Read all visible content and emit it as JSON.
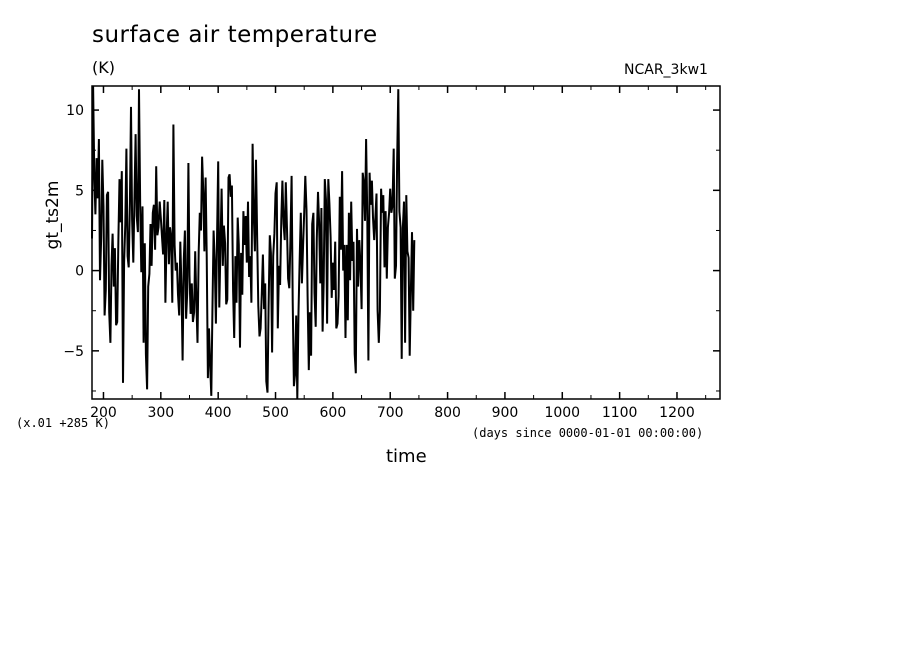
{
  "chart_data": {
    "type": "line",
    "title": "surface air temperature",
    "units": "(K)",
    "experiment": "NCAR_3kw1",
    "ylabel": "gt_ts2m",
    "xlabel": "time",
    "x_units": "(days since 0000-01-01 00:00:00)",
    "scale_note": "(x.01 +285 K)",
    "xlim": [
      180,
      1275
    ],
    "ylim": [
      -8,
      11.5
    ],
    "x_ticks": [
      200,
      300,
      400,
      500,
      600,
      700,
      800,
      900,
      1000,
      1100,
      1200
    ],
    "y_ticks": [
      -5,
      0,
      5,
      10
    ],
    "grid": false,
    "x_start": 180,
    "x_step": 2,
    "series": [
      {
        "color": "#000000",
        "values": [
          2.0,
          11.5,
          6.0,
          3.5,
          7.0,
          4.5,
          8.2,
          -0.6,
          2.1,
          6.9,
          4.0,
          -2.8,
          -1.2,
          4.7,
          4.9,
          -2.6,
          -4.5,
          0.3,
          2.3,
          -1.0,
          1.4,
          -3.4,
          -3.2,
          2.0,
          5.7,
          3.0,
          6.2,
          -7.0,
          0.5,
          2.9,
          7.6,
          0.9,
          0.2,
          4.2,
          10.2,
          3.2,
          0.5,
          4.3,
          8.5,
          3.4,
          2.4,
          11.3,
          4.0,
          -0.1,
          4.0,
          -4.5,
          1.7,
          -5.2,
          -7.4,
          -1.0,
          -0.2,
          2.9,
          0.3,
          3.6,
          4.1,
          1.3,
          6.5,
          2.2,
          2.7,
          4.3,
          3.3,
          2.1,
          1.0,
          4.4,
          -2.0,
          2.2,
          4.3,
          0.4,
          2.7,
          2.1,
          -2.0,
          9.1,
          1.6,
          0.0,
          0.5,
          -1.5,
          -2.8,
          1.8,
          -1.1,
          -5.6,
          0.7,
          2.5,
          -3.0,
          -1.4,
          6.7,
          -0.3,
          -2.7,
          -0.8,
          -3.2,
          -2.6,
          1.2,
          -2.0,
          -4.5,
          1.2,
          3.6,
          2.5,
          7.1,
          4.9,
          1.2,
          5.8,
          1.0,
          -6.7,
          -3.6,
          -5.8,
          -7.8,
          -2.6,
          2.5,
          0.7,
          -3.3,
          1.9,
          6.8,
          -2.3,
          1.6,
          5.1,
          0.3,
          2.8,
          1.7,
          -2.1,
          -1.8,
          5.8,
          6.0,
          4.6,
          5.3,
          -1.3,
          -4.2,
          0.9,
          -2.0,
          3.3,
          1.6,
          -4.8,
          1.1,
          -1.5,
          3.7,
          1.6,
          3.4,
          0.5,
          4.3,
          -0.4,
          0.9,
          -2.0,
          7.9,
          3.6,
          1.2,
          6.9,
          1.9,
          -2.2,
          -4.1,
          -3.6,
          -1.4,
          1.0,
          -2.4,
          -0.8,
          -6.9,
          -7.6,
          -2.2,
          2.2,
          1.1,
          -5.1,
          0.9,
          2.3,
          4.8,
          5.5,
          -3.6,
          0.3,
          -0.9,
          3.2,
          5.6,
          2.9,
          1.9,
          5.5,
          2.6,
          -0.5,
          -1.1,
          1.8,
          5.9,
          -1.9,
          -7.2,
          -6.5,
          -2.8,
          -8.0,
          -2.6,
          0.5,
          3.6,
          -0.8,
          1.6,
          3.6,
          5.9,
          3.8,
          -1.6,
          -6.2,
          -2.6,
          -5.3,
          2.9,
          3.6,
          -1.4,
          -3.5,
          2.0,
          4.9,
          3.0,
          -0.8,
          3.9,
          -3.8,
          -0.7,
          5.7,
          4.4,
          -3.3,
          5.7,
          4.2,
          2.1,
          -1.7,
          0.5,
          -1.2,
          1.8,
          -3.6,
          -3.3,
          -1.6,
          4.6,
          1.3,
          6.2,
          0.0,
          1.6,
          -4.2,
          1.6,
          -3.1,
          3.6,
          -0.6,
          4.3,
          0.6,
          1.8,
          -5.2,
          -6.4,
          2.6,
          -1.0,
          1.9,
          0.4,
          -2.4,
          6.1,
          5.5,
          3.1,
          8.2,
          3.3,
          -5.6,
          6.1,
          4.1,
          5.6,
          3.3,
          1.9,
          3.2,
          4.8,
          -2.5,
          -4.5,
          -2.5,
          5.1,
          3.6,
          4.7,
          0.2,
          3.7,
          -0.5,
          2.7,
          3.6,
          5.1,
          3.6,
          4.1,
          7.6,
          -0.5,
          0.3,
          6.7,
          11.3,
          3.7,
          2.7,
          -5.5,
          2.6,
          4.3,
          -4.5,
          4.7,
          1.2,
          0.8,
          -5.3,
          -1.2,
          2.4,
          -2.5,
          1.9
        ]
      }
    ]
  }
}
